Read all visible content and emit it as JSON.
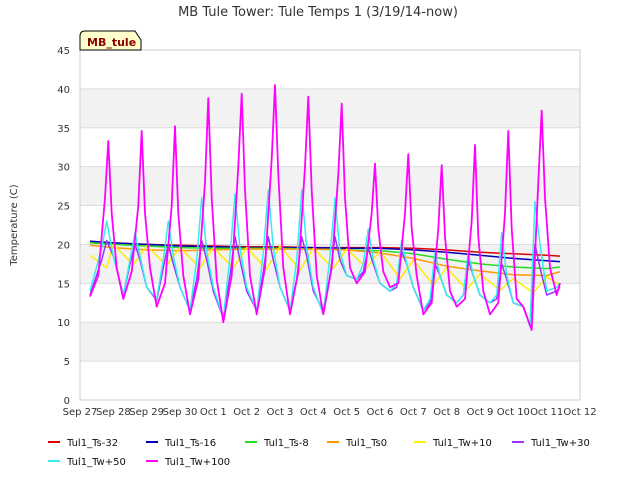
{
  "chart_data": {
    "type": "line",
    "title": "MB Tule Tower: Tule Temps 1 (3/19/14-now)",
    "badge": "MB_tule",
    "ylabel": "Temperature (C)",
    "xlabel": "",
    "ylim": [
      0,
      45
    ],
    "yticks": [
      0,
      5,
      10,
      15,
      20,
      25,
      30,
      35,
      40,
      45
    ],
    "xlim": [
      0,
      15
    ],
    "xticks": [
      {
        "x": 0,
        "label": "Sep 27"
      },
      {
        "x": 1,
        "label": "Sep 28"
      },
      {
        "x": 2,
        "label": "Sep 29"
      },
      {
        "x": 3,
        "label": "Sep 30"
      },
      {
        "x": 4,
        "label": "Oct 1"
      },
      {
        "x": 5,
        "label": "Oct 2"
      },
      {
        "x": 6,
        "label": "Oct 3"
      },
      {
        "x": 7,
        "label": "Oct 4"
      },
      {
        "x": 8,
        "label": "Oct 5"
      },
      {
        "x": 9,
        "label": "Oct 6"
      },
      {
        "x": 10,
        "label": "Oct 7"
      },
      {
        "x": 11,
        "label": "Oct 8"
      },
      {
        "x": 12,
        "label": "Oct 9"
      },
      {
        "x": 13,
        "label": "Oct 10"
      },
      {
        "x": 14,
        "label": "Oct 11"
      },
      {
        "x": 15,
        "label": "Oct 12"
      }
    ],
    "grid": "horizontal bands",
    "legend_position": "bottom",
    "series": [
      {
        "name": "Tul1_Ts-32",
        "color": "#dd0000",
        "x": [
          0.3,
          1,
          2,
          3,
          4,
          5,
          6,
          7,
          8,
          9,
          10,
          11,
          12,
          13,
          14,
          14.4
        ],
        "y": [
          20.4,
          20.2,
          20.0,
          19.9,
          19.8,
          19.7,
          19.7,
          19.6,
          19.6,
          19.6,
          19.5,
          19.3,
          19.0,
          18.8,
          18.6,
          18.5
        ]
      },
      {
        "name": "Tul1_Ts-16",
        "color": "#0000bb",
        "x": [
          0.3,
          1,
          2,
          3,
          4,
          5,
          6,
          7,
          8,
          9,
          10,
          11,
          12,
          13,
          14,
          14.4
        ],
        "y": [
          20.4,
          20.2,
          20.0,
          19.8,
          19.7,
          19.6,
          19.6,
          19.6,
          19.5,
          19.5,
          19.3,
          19.0,
          18.6,
          18.2,
          17.9,
          17.8
        ]
      },
      {
        "name": "Tul1_Ts-8",
        "color": "#22dd22",
        "x": [
          0.3,
          1,
          2,
          3,
          4,
          5,
          6,
          7,
          8,
          9,
          10,
          11,
          12,
          13,
          14,
          14.4
        ],
        "y": [
          20.2,
          20.0,
          19.8,
          19.6,
          19.5,
          19.5,
          19.5,
          19.4,
          19.3,
          19.2,
          18.8,
          18.1,
          17.5,
          17.1,
          16.9,
          17.1
        ]
      },
      {
        "name": "Tul1_Ts0",
        "color": "#ff9900",
        "x": [
          0.3,
          1,
          2,
          3,
          4,
          5,
          6,
          7,
          8,
          9,
          10,
          11,
          12,
          13,
          14,
          14.4
        ],
        "y": [
          19.9,
          19.6,
          19.3,
          19.2,
          19.3,
          19.4,
          19.4,
          19.4,
          19.3,
          18.9,
          18.2,
          17.2,
          16.6,
          16.1,
          16.0,
          16.5
        ]
      },
      {
        "name": "Tul1_Tw+10",
        "color": "#ffee00",
        "x": [
          0.3,
          0.8,
          1.0,
          1.6,
          2.0,
          2.6,
          3.0,
          3.6,
          4.0,
          4.6,
          5.0,
          5.6,
          6.0,
          6.6,
          7.0,
          7.6,
          8.0,
          8.6,
          9.0,
          9.6,
          10.0,
          10.6,
          11.0,
          11.6,
          12.0,
          12.6,
          13.0,
          13.6,
          14.0,
          14.4
        ],
        "y": [
          18.6,
          17.0,
          20.0,
          17.4,
          19.8,
          17.3,
          19.6,
          17.0,
          19.6,
          17.0,
          19.6,
          16.8,
          19.8,
          16.7,
          19.5,
          16.9,
          19.4,
          17.0,
          19.2,
          15.6,
          18.0,
          14.8,
          17.0,
          14.2,
          16.2,
          14.1,
          15.6,
          13.8,
          15.8,
          14.8
        ]
      },
      {
        "name": "Tul1_Tw+30",
        "color": "#9933ff",
        "x": [
          0.3,
          0.65,
          0.8,
          1.0,
          1.3,
          1.5,
          1.65,
          1.8,
          2.0,
          2.3,
          2.5,
          2.65,
          2.8,
          3.0,
          3.3,
          3.5,
          3.65,
          3.8,
          4.0,
          4.3,
          4.5,
          4.65,
          4.8,
          5.0,
          5.3,
          5.5,
          5.65,
          5.8,
          6.0,
          6.3,
          6.5,
          6.65,
          6.8,
          7.0,
          7.3,
          7.5,
          7.65,
          7.8,
          8.0,
          8.3,
          8.5,
          8.65,
          8.8,
          9.0,
          9.3,
          9.5,
          9.65,
          9.8,
          10.0,
          10.3,
          10.5,
          10.65,
          10.8,
          11.0,
          11.3,
          11.5,
          11.65,
          11.8,
          12.0,
          12.3,
          12.5,
          12.65,
          12.8,
          13.0,
          13.3,
          13.5,
          13.65,
          13.8,
          14.0,
          14.3,
          14.4
        ],
        "y": [
          13.5,
          18.0,
          20.5,
          18.5,
          13.5,
          17.5,
          20.0,
          18.0,
          14.5,
          12.8,
          17.0,
          20.0,
          17.5,
          14.5,
          11.5,
          15.5,
          20.5,
          18.0,
          14.0,
          10.5,
          16.0,
          21.0,
          18.0,
          14.0,
          11.5,
          16.5,
          21.0,
          18.0,
          14.5,
          11.5,
          15.5,
          21.0,
          18.5,
          14.0,
          11.5,
          16.0,
          21.0,
          18.0,
          16.0,
          15.5,
          16.5,
          19.5,
          17.5,
          15.0,
          14.0,
          14.5,
          19.0,
          17.5,
          14.5,
          11.5,
          12.5,
          17.5,
          16.0,
          13.5,
          12.5,
          13.5,
          18.0,
          16.0,
          13.5,
          12.5,
          13.0,
          17.5,
          15.5,
          12.5,
          12.0,
          9.5,
          20.0,
          17.0,
          13.5,
          14.0,
          14.5
        ]
      },
      {
        "name": "Tul1_Tw+50",
        "color": "#33eeee",
        "x": [
          0.3,
          0.65,
          0.8,
          1.0,
          1.3,
          1.5,
          1.65,
          1.8,
          2.0,
          2.3,
          2.5,
          2.65,
          2.8,
          3.0,
          3.3,
          3.5,
          3.65,
          3.8,
          4.0,
          4.3,
          4.5,
          4.65,
          4.8,
          5.0,
          5.3,
          5.5,
          5.65,
          5.8,
          6.0,
          6.3,
          6.5,
          6.65,
          6.8,
          7.0,
          7.3,
          7.5,
          7.65,
          7.8,
          8.0,
          8.3,
          8.5,
          8.65,
          8.8,
          9.0,
          9.3,
          9.5,
          9.65,
          9.8,
          10.0,
          10.3,
          10.5,
          10.65,
          10.8,
          11.0,
          11.3,
          11.5,
          11.65,
          11.8,
          12.0,
          12.3,
          12.5,
          12.65,
          12.8,
          13.0,
          13.3,
          13.5,
          13.65,
          13.8,
          14.0,
          14.3,
          14.4
        ],
        "y": [
          14.0,
          19.5,
          23.0,
          18.5,
          13.5,
          18.0,
          21.5,
          18.5,
          14.5,
          13.0,
          18.0,
          23.0,
          18.5,
          14.5,
          11.5,
          18.0,
          26.0,
          19.0,
          14.5,
          10.5,
          18.5,
          26.5,
          19.5,
          14.5,
          11.5,
          19.0,
          27.0,
          19.5,
          14.5,
          11.5,
          18.0,
          27.0,
          19.5,
          14.5,
          11.0,
          18.5,
          26.0,
          19.0,
          16.0,
          15.5,
          17.5,
          22.0,
          18.0,
          15.0,
          14.0,
          15.0,
          20.5,
          17.5,
          14.5,
          11.5,
          13.0,
          19.0,
          16.0,
          13.5,
          12.5,
          13.5,
          19.0,
          16.0,
          13.5,
          12.5,
          13.5,
          21.5,
          16.0,
          12.5,
          12.0,
          9.5,
          25.5,
          20.0,
          14.0,
          14.5,
          15.0
        ]
      },
      {
        "name": "Tul1_Tw+100",
        "color": "#ff00ff",
        "x": [
          0.3,
          0.55,
          0.75,
          0.85,
          0.95,
          1.1,
          1.3,
          1.55,
          1.75,
          1.85,
          1.95,
          2.1,
          2.3,
          2.55,
          2.75,
          2.85,
          2.95,
          3.1,
          3.3,
          3.55,
          3.75,
          3.85,
          3.95,
          4.1,
          4.3,
          4.55,
          4.75,
          4.85,
          4.95,
          5.1,
          5.3,
          5.55,
          5.75,
          5.85,
          5.95,
          6.1,
          6.3,
          6.55,
          6.75,
          6.85,
          6.95,
          7.1,
          7.3,
          7.55,
          7.75,
          7.85,
          7.95,
          8.1,
          8.3,
          8.55,
          8.75,
          8.85,
          8.95,
          9.1,
          9.3,
          9.55,
          9.75,
          9.85,
          9.95,
          10.1,
          10.3,
          10.55,
          10.75,
          10.85,
          10.95,
          11.1,
          11.3,
          11.55,
          11.75,
          11.85,
          11.95,
          12.1,
          12.3,
          12.55,
          12.75,
          12.85,
          12.95,
          13.1,
          13.3,
          13.55,
          13.75,
          13.85,
          13.95,
          14.1,
          14.3,
          14.4
        ],
        "y": [
          13.3,
          16.0,
          26.0,
          33.3,
          24.0,
          17.0,
          13.0,
          16.5,
          25.0,
          34.6,
          24.0,
          17.0,
          12.0,
          15.0,
          25.0,
          35.2,
          24.0,
          16.0,
          11.0,
          15.5,
          28.0,
          38.8,
          26.0,
          15.5,
          10.0,
          16.0,
          30.0,
          39.4,
          27.0,
          16.0,
          11.0,
          17.0,
          31.0,
          40.5,
          29.0,
          17.0,
          11.0,
          16.5,
          30.0,
          39.0,
          27.0,
          16.0,
          11.0,
          17.0,
          29.0,
          38.1,
          26.0,
          17.0,
          15.0,
          16.5,
          24.0,
          30.4,
          22.0,
          16.5,
          14.5,
          15.0,
          24.0,
          31.6,
          22.0,
          16.0,
          11.0,
          12.5,
          22.0,
          30.2,
          21.0,
          14.0,
          12.0,
          13.0,
          23.0,
          32.8,
          21.0,
          14.0,
          11.0,
          12.5,
          24.0,
          34.6,
          22.0,
          13.0,
          12.0,
          9.0,
          28.0,
          37.2,
          26.0,
          17.0,
          13.5,
          15.0
        ]
      }
    ]
  },
  "legend_row1": [
    "Tul1_Ts-32",
    "Tul1_Ts-16",
    "Tul1_Ts-8",
    "Tul1_Ts0",
    "Tul1_Tw+10",
    "Tul1_Tw+30"
  ],
  "legend_row2": [
    "Tul1_Tw+50",
    "Tul1_Tw+100"
  ]
}
